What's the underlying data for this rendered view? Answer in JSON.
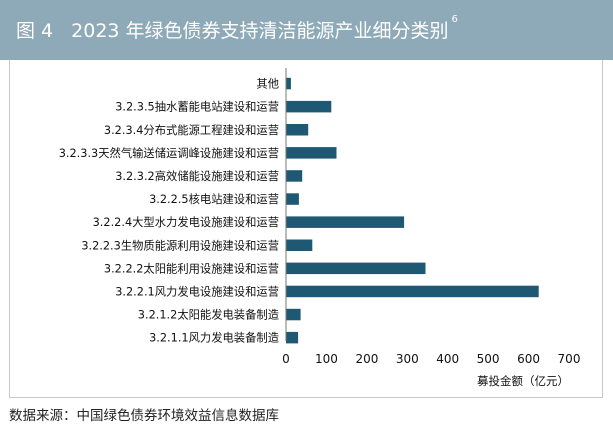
{
  "header": {
    "figure_label": "图 4",
    "title_text": "2023 年绿色债券支持清洁能源产业细分类别",
    "footnote_mark": "6"
  },
  "source_note": "数据来源：中国绿色债券环境效益信息数据库",
  "colors": {
    "header_bg": "#8ea9b7",
    "bar": "#1f5873"
  },
  "chart_data": {
    "type": "bar",
    "orientation": "horizontal",
    "categories": [
      "其他",
      "3.2.3.5抽水蓄能电站建设和运营",
      "3.2.3.4分布式能源工程建设和运营",
      "3.2.3.3天然气输送储运调峰设施建设和运营",
      "3.2.3.2高效储能设施建设和运营",
      "3.2.2.5核电站建设和运营",
      "3.2.2.4大型水力发电设施建设和运营",
      "3.2.2.3生物质能源利用设施建设和运营",
      "3.2.2.2太阳能利用设施建设和运营",
      "3.2.2.1风力发电设施建设和运营",
      "3.2.1.2太阳能发电装备制造",
      "3.2.1.1风力发电装备制造"
    ],
    "values": [
      12,
      112,
      55,
      125,
      40,
      32,
      292,
      65,
      345,
      625,
      36,
      30
    ],
    "xlabel": "募投金额（亿元）",
    "xlim": [
      0,
      700
    ],
    "xticks": [
      0,
      100,
      200,
      300,
      400,
      500,
      600,
      700
    ],
    "grid": false,
    "legend": "none"
  }
}
